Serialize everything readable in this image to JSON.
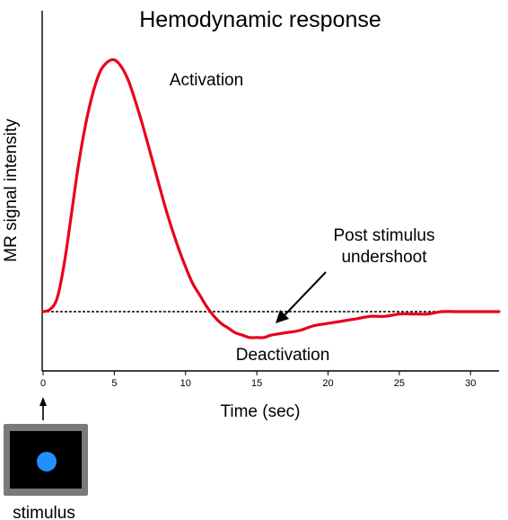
{
  "chart_data": {
    "type": "line",
    "title": "Hemodynamic response",
    "xlabel": "Time (sec)",
    "ylabel": "MR signal intensity",
    "xlim": [
      0,
      32
    ],
    "ylim": [
      -0.3,
      1.2
    ],
    "x_ticks": [
      0,
      5,
      10,
      15,
      20,
      25,
      30
    ],
    "x_tick_labels": [
      "0",
      "5",
      "10",
      "15",
      "20",
      "25",
      "30"
    ],
    "baseline": 0,
    "grid": false,
    "legend": "none",
    "series": [
      {
        "color": "#e8001c",
        "x": [
          0,
          0.5,
          1,
          1.5,
          2,
          2.5,
          3,
          3.5,
          4,
          4.5,
          5,
          5.5,
          6,
          6.5,
          7,
          7.5,
          8,
          8.5,
          9,
          9.5,
          10,
          10.5,
          11,
          11.5,
          12,
          12.5,
          13,
          13.5,
          14,
          14.5,
          15,
          15.5,
          16,
          17,
          18,
          19,
          20,
          21,
          22,
          23,
          24,
          25,
          26,
          27,
          28,
          29,
          30,
          31,
          32
        ],
        "y": [
          0,
          0.01,
          0.06,
          0.21,
          0.42,
          0.63,
          0.8,
          0.93,
          1.02,
          1.06,
          1.07,
          1.04,
          0.98,
          0.89,
          0.79,
          0.68,
          0.57,
          0.46,
          0.36,
          0.27,
          0.19,
          0.12,
          0.07,
          0.02,
          -0.02,
          -0.05,
          -0.07,
          -0.09,
          -0.1,
          -0.11,
          -0.11,
          -0.11,
          -0.1,
          -0.09,
          -0.08,
          -0.06,
          -0.05,
          -0.04,
          -0.03,
          -0.02,
          -0.02,
          -0.01,
          -0.01,
          -0.01,
          0,
          0,
          0,
          0,
          0
        ]
      }
    ],
    "annotations": [
      {
        "text": "Activation"
      },
      {
        "text": "Post stimulus undershoot",
        "lines": [
          "Post stimulus",
          "undershoot"
        ]
      },
      {
        "text": "Deactivation"
      }
    ]
  },
  "stimulus": {
    "label": "stimulus",
    "frame_color": "#7a7a7a",
    "screen_color": "#000000",
    "dot_color": "#1e90ff"
  },
  "colors": {
    "curve": "#e8001c",
    "baseline": "#000000",
    "axis": "#000000"
  }
}
